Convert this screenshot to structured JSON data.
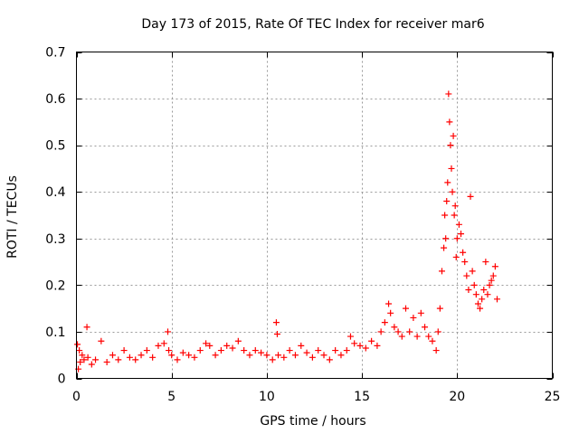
{
  "chart_data": {
    "type": "scatter",
    "title": "Day 173 of 2015, Rate Of TEC Index for receiver mar6",
    "xlabel": "GPS time / hours",
    "ylabel": "ROTI / TECUs",
    "xlim": [
      0,
      25
    ],
    "ylim": [
      0,
      0.7
    ],
    "x_ticks": [
      0,
      5,
      10,
      15,
      20,
      25
    ],
    "x_tick_labels": [
      "0",
      "5",
      "10",
      "15",
      "20",
      "25"
    ],
    "y_ticks": [
      0,
      0.1,
      0.2,
      0.3,
      0.4,
      0.5,
      0.6,
      0.7
    ],
    "y_tick_labels": [
      "0",
      "0.1",
      "0.2",
      "0.3",
      "0.4",
      "0.5",
      "0.6",
      "0.7"
    ],
    "grid": true,
    "marker": "plus",
    "series": [
      {
        "name": "ROTI",
        "color": "#ff0000",
        "x": [
          0.05,
          0.1,
          0.15,
          0.2,
          0.3,
          0.4,
          0.55,
          0.6,
          0.8,
          1.0,
          1.3,
          1.6,
          1.9,
          2.2,
          2.5,
          2.8,
          3.1,
          3.4,
          3.7,
          4.0,
          4.3,
          4.6,
          4.8,
          4.85,
          5.0,
          5.3,
          5.6,
          5.9,
          6.2,
          6.5,
          6.8,
          7.0,
          7.3,
          7.6,
          7.9,
          8.2,
          8.5,
          8.8,
          9.1,
          9.4,
          9.7,
          10.0,
          10.3,
          10.5,
          10.55,
          10.6,
          10.9,
          11.2,
          11.5,
          11.8,
          12.1,
          12.4,
          12.7,
          13.0,
          13.3,
          13.6,
          13.9,
          14.2,
          14.4,
          14.6,
          14.9,
          15.2,
          15.5,
          15.8,
          16.0,
          16.2,
          16.4,
          16.5,
          16.7,
          16.9,
          17.1,
          17.3,
          17.5,
          17.7,
          17.9,
          18.1,
          18.3,
          18.5,
          18.7,
          18.9,
          19.0,
          19.1,
          19.2,
          19.3,
          19.35,
          19.4,
          19.45,
          19.5,
          19.55,
          19.6,
          19.65,
          19.7,
          19.75,
          19.8,
          19.85,
          19.9,
          19.95,
          20.0,
          20.1,
          20.2,
          20.3,
          20.4,
          20.5,
          20.6,
          20.7,
          20.8,
          20.9,
          21.0,
          21.1,
          21.2,
          21.3,
          21.4,
          21.5,
          21.6,
          21.7,
          21.8,
          21.9,
          22.0,
          22.1
        ],
        "y": [
          0.073,
          0.02,
          0.06,
          0.035,
          0.05,
          0.04,
          0.11,
          0.045,
          0.03,
          0.04,
          0.08,
          0.035,
          0.05,
          0.04,
          0.06,
          0.045,
          0.04,
          0.05,
          0.06,
          0.045,
          0.07,
          0.075,
          0.1,
          0.06,
          0.05,
          0.04,
          0.055,
          0.05,
          0.045,
          0.06,
          0.075,
          0.07,
          0.05,
          0.06,
          0.07,
          0.065,
          0.08,
          0.06,
          0.05,
          0.06,
          0.055,
          0.05,
          0.04,
          0.12,
          0.095,
          0.05,
          0.045,
          0.06,
          0.05,
          0.07,
          0.055,
          0.045,
          0.06,
          0.05,
          0.04,
          0.06,
          0.05,
          0.06,
          0.09,
          0.075,
          0.07,
          0.065,
          0.08,
          0.07,
          0.1,
          0.12,
          0.16,
          0.14,
          0.11,
          0.1,
          0.09,
          0.15,
          0.1,
          0.13,
          0.09,
          0.14,
          0.11,
          0.09,
          0.08,
          0.06,
          0.1,
          0.15,
          0.23,
          0.28,
          0.35,
          0.3,
          0.38,
          0.42,
          0.61,
          0.55,
          0.5,
          0.45,
          0.4,
          0.52,
          0.35,
          0.37,
          0.26,
          0.3,
          0.33,
          0.31,
          0.27,
          0.25,
          0.22,
          0.19,
          0.39,
          0.23,
          0.2,
          0.18,
          0.16,
          0.15,
          0.17,
          0.19,
          0.25,
          0.18,
          0.2,
          0.21,
          0.22,
          0.24,
          0.17
        ]
      }
    ]
  }
}
